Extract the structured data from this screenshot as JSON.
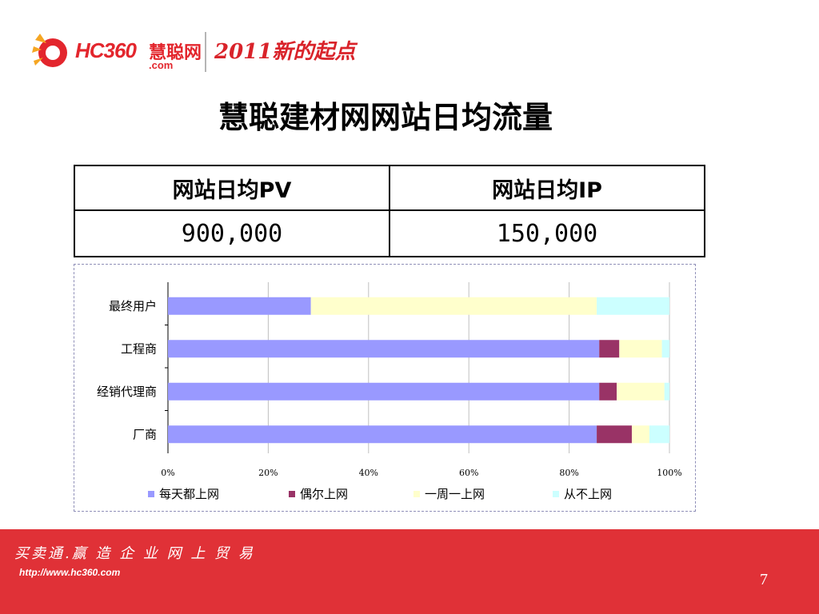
{
  "logo": {
    "brand": "HC360",
    "brand_cn": "慧聪网",
    "domain": ".com",
    "slogan": "2011新的起点",
    "colors": {
      "primary": "#e3262d",
      "flame": "#f5a623"
    }
  },
  "title": "慧聪建材网网站日均流量",
  "stats_table": {
    "headers": [
      "网站日均PV",
      "网站日均IP"
    ],
    "values": [
      "900,000",
      "150,000"
    ]
  },
  "chart_data": {
    "type": "bar",
    "orientation": "horizontal",
    "stacked": "percent",
    "categories": [
      "最终用户",
      "工程商",
      "经销代理商",
      "厂商"
    ],
    "series": [
      {
        "name": "每天都上网",
        "color": "#9999ff",
        "values": [
          28.5,
          86,
          86,
          85.5
        ]
      },
      {
        "name": "偶尔上网",
        "color": "#993366",
        "values": [
          0,
          4,
          3.5,
          7
        ]
      },
      {
        "name": "一周一上网",
        "color": "#ffffcc",
        "values": [
          57,
          8.5,
          9.5,
          3.5
        ]
      },
      {
        "name": "从不上网",
        "color": "#ccffff",
        "values": [
          14.5,
          1.5,
          1,
          4
        ]
      }
    ],
    "xlim": [
      0,
      100
    ],
    "x_ticks": [
      "0%",
      "20%",
      "40%",
      "60%",
      "80%",
      "100%"
    ],
    "grid": true,
    "legend": "bottom"
  },
  "footer": {
    "slogan": "买卖通.赢 造 企 业 网 上 贸 易",
    "url": "http://www.hc360.com",
    "page_number": "7",
    "color": "#e03137"
  }
}
